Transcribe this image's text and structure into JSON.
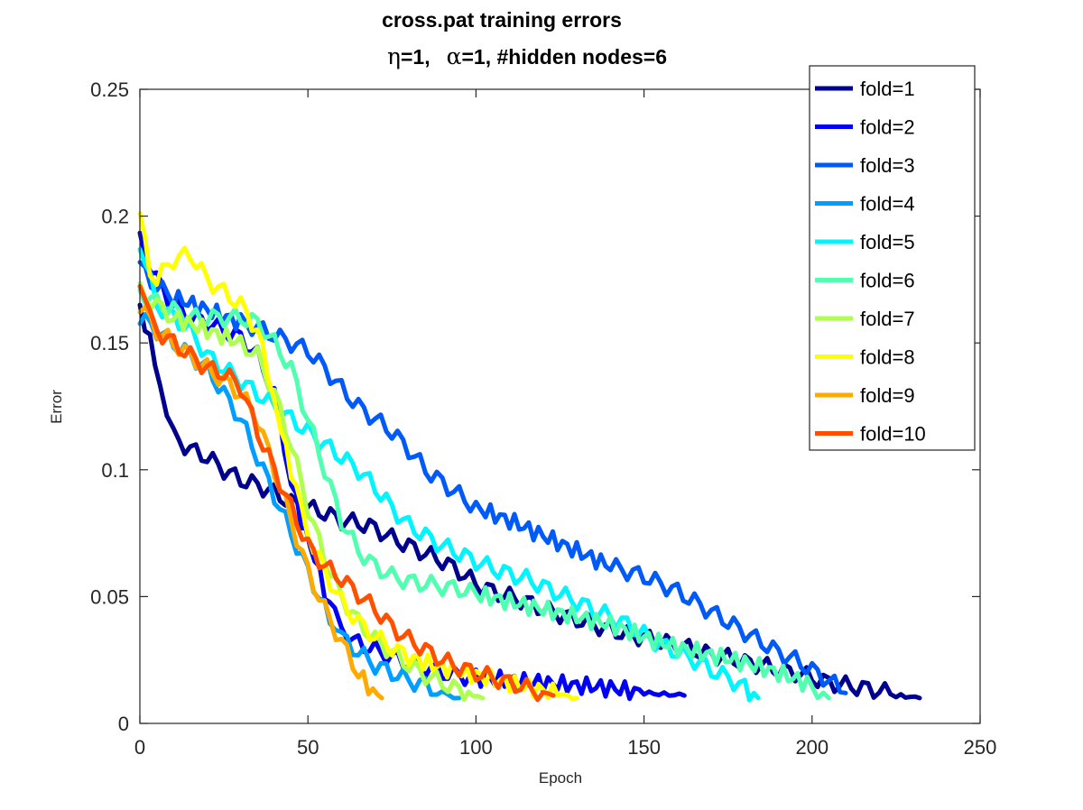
{
  "chart_data": {
    "type": "line",
    "title": "cross.pat training errors",
    "subtitle": {
      "eta_symbol": "η",
      "eta_text": "=1,",
      "alpha_symbol": "α",
      "alpha_text": "=1, #hidden nodes=6"
    },
    "xlabel": "Epoch",
    "ylabel": "Error",
    "xlim": [
      0,
      250
    ],
    "ylim": [
      0,
      0.25
    ],
    "xticks": [
      0,
      50,
      100,
      150,
      200,
      250
    ],
    "xtick_labels": [
      "0",
      "50",
      "100",
      "150",
      "200",
      "250"
    ],
    "yticks": [
      0,
      0.05,
      0.1,
      0.15,
      0.2,
      0.25
    ],
    "ytick_labels": [
      "0",
      "0.05",
      "0.1",
      "0.15",
      "0.2",
      "0.25"
    ],
    "grid": false,
    "legend_position": "top-right",
    "series": [
      {
        "name": "fold=1",
        "color": "#00008f",
        "points": [
          [
            0,
            0.165
          ],
          [
            3,
            0.15
          ],
          [
            6,
            0.135
          ],
          [
            8,
            0.12
          ],
          [
            10,
            0.113
          ],
          [
            15,
            0.108
          ],
          [
            20,
            0.105
          ],
          [
            25,
            0.1
          ],
          [
            30,
            0.096
          ],
          [
            35,
            0.094
          ],
          [
            40,
            0.091
          ],
          [
            45,
            0.087
          ],
          [
            50,
            0.085
          ],
          [
            55,
            0.083
          ],
          [
            60,
            0.08
          ],
          [
            65,
            0.079
          ],
          [
            70,
            0.077
          ],
          [
            75,
            0.073
          ],
          [
            80,
            0.07
          ],
          [
            85,
            0.067
          ],
          [
            90,
            0.064
          ],
          [
            95,
            0.06
          ],
          [
            100,
            0.055
          ],
          [
            105,
            0.052
          ],
          [
            110,
            0.05
          ],
          [
            115,
            0.048
          ],
          [
            120,
            0.045
          ],
          [
            125,
            0.043
          ],
          [
            130,
            0.041
          ],
          [
            135,
            0.039
          ],
          [
            140,
            0.037
          ],
          [
            145,
            0.035
          ],
          [
            150,
            0.034
          ],
          [
            155,
            0.032
          ],
          [
            160,
            0.031
          ],
          [
            165,
            0.029
          ],
          [
            170,
            0.027
          ],
          [
            175,
            0.026
          ],
          [
            180,
            0.024
          ],
          [
            185,
            0.023
          ],
          [
            190,
            0.021
          ],
          [
            195,
            0.02
          ],
          [
            200,
            0.018
          ],
          [
            205,
            0.016
          ],
          [
            210,
            0.015
          ],
          [
            215,
            0.014
          ],
          [
            220,
            0.013
          ],
          [
            225,
            0.011
          ],
          [
            232,
            0.01
          ]
        ]
      },
      {
        "name": "fold=2",
        "color": "#0000f5",
        "points": [
          [
            0,
            0.19
          ],
          [
            5,
            0.175
          ],
          [
            10,
            0.165
          ],
          [
            15,
            0.16
          ],
          [
            20,
            0.158
          ],
          [
            25,
            0.155
          ],
          [
            30,
            0.152
          ],
          [
            35,
            0.145
          ],
          [
            40,
            0.13
          ],
          [
            43,
            0.11
          ],
          [
            45,
            0.095
          ],
          [
            48,
            0.08
          ],
          [
            52,
            0.065
          ],
          [
            55,
            0.052
          ],
          [
            58,
            0.043
          ],
          [
            60,
            0.038
          ],
          [
            62,
            0.035
          ],
          [
            65,
            0.032
          ],
          [
            70,
            0.029
          ],
          [
            75,
            0.026
          ],
          [
            80,
            0.024
          ],
          [
            85,
            0.022
          ],
          [
            90,
            0.02
          ],
          [
            95,
            0.019
          ],
          [
            100,
            0.018
          ],
          [
            110,
            0.017
          ],
          [
            120,
            0.016
          ],
          [
            130,
            0.015
          ],
          [
            140,
            0.014
          ],
          [
            150,
            0.012
          ],
          [
            162,
            0.011
          ]
        ]
      },
      {
        "name": "fold=3",
        "color": "#005af8",
        "points": [
          [
            0,
            0.18
          ],
          [
            5,
            0.172
          ],
          [
            10,
            0.168
          ],
          [
            20,
            0.163
          ],
          [
            30,
            0.158
          ],
          [
            35,
            0.156
          ],
          [
            40,
            0.153
          ],
          [
            45,
            0.15
          ],
          [
            50,
            0.147
          ],
          [
            55,
            0.14
          ],
          [
            60,
            0.132
          ],
          [
            65,
            0.125
          ],
          [
            70,
            0.12
          ],
          [
            75,
            0.115
          ],
          [
            80,
            0.108
          ],
          [
            85,
            0.1
          ],
          [
            90,
            0.095
          ],
          [
            95,
            0.09
          ],
          [
            100,
            0.085
          ],
          [
            110,
            0.08
          ],
          [
            120,
            0.074
          ],
          [
            130,
            0.068
          ],
          [
            140,
            0.062
          ],
          [
            145,
            0.06
          ],
          [
            150,
            0.058
          ],
          [
            155,
            0.055
          ],
          [
            160,
            0.052
          ],
          [
            165,
            0.048
          ],
          [
            170,
            0.044
          ],
          [
            175,
            0.04
          ],
          [
            180,
            0.036
          ],
          [
            185,
            0.032
          ],
          [
            190,
            0.028
          ],
          [
            195,
            0.025
          ],
          [
            200,
            0.021
          ],
          [
            205,
            0.017
          ],
          [
            210,
            0.012
          ]
        ]
      },
      {
        "name": "fold=4",
        "color": "#009fff",
        "points": [
          [
            0,
            0.16
          ],
          [
            5,
            0.155
          ],
          [
            10,
            0.15
          ],
          [
            15,
            0.145
          ],
          [
            20,
            0.14
          ],
          [
            25,
            0.13
          ],
          [
            30,
            0.12
          ],
          [
            35,
            0.105
          ],
          [
            40,
            0.09
          ],
          [
            45,
            0.075
          ],
          [
            50,
            0.06
          ],
          [
            55,
            0.045
          ],
          [
            58,
            0.038
          ],
          [
            60,
            0.034
          ],
          [
            65,
            0.028
          ],
          [
            70,
            0.023
          ],
          [
            75,
            0.02
          ],
          [
            80,
            0.017
          ],
          [
            85,
            0.015
          ],
          [
            90,
            0.012
          ],
          [
            95,
            0.01
          ]
        ]
      },
      {
        "name": "fold=5",
        "color": "#00f5ff",
        "points": [
          [
            0,
            0.19
          ],
          [
            5,
            0.165
          ],
          [
            10,
            0.16
          ],
          [
            15,
            0.155
          ],
          [
            20,
            0.145
          ],
          [
            25,
            0.14
          ],
          [
            30,
            0.135
          ],
          [
            35,
            0.13
          ],
          [
            40,
            0.125
          ],
          [
            45,
            0.12
          ],
          [
            50,
            0.115
          ],
          [
            55,
            0.11
          ],
          [
            60,
            0.105
          ],
          [
            65,
            0.1
          ],
          [
            70,
            0.093
          ],
          [
            75,
            0.085
          ],
          [
            80,
            0.078
          ],
          [
            85,
            0.074
          ],
          [
            90,
            0.07
          ],
          [
            95,
            0.067
          ],
          [
            100,
            0.064
          ],
          [
            105,
            0.061
          ],
          [
            110,
            0.059
          ],
          [
            115,
            0.057
          ],
          [
            120,
            0.054
          ],
          [
            125,
            0.051
          ],
          [
            130,
            0.048
          ],
          [
            135,
            0.045
          ],
          [
            140,
            0.042
          ],
          [
            145,
            0.039
          ],
          [
            150,
            0.035
          ],
          [
            155,
            0.031
          ],
          [
            160,
            0.028
          ],
          [
            165,
            0.025
          ],
          [
            170,
            0.021
          ],
          [
            175,
            0.018
          ],
          [
            180,
            0.014
          ],
          [
            184,
            0.01
          ]
        ]
      },
      {
        "name": "fold=6",
        "color": "#50ffaf",
        "points": [
          [
            0,
            0.17
          ],
          [
            5,
            0.166
          ],
          [
            10,
            0.163
          ],
          [
            15,
            0.16
          ],
          [
            20,
            0.16
          ],
          [
            25,
            0.16
          ],
          [
            30,
            0.16
          ],
          [
            35,
            0.158
          ],
          [
            40,
            0.15
          ],
          [
            45,
            0.14
          ],
          [
            50,
            0.12
          ],
          [
            55,
            0.1
          ],
          [
            60,
            0.08
          ],
          [
            65,
            0.068
          ],
          [
            70,
            0.062
          ],
          [
            75,
            0.058
          ],
          [
            80,
            0.056
          ],
          [
            85,
            0.055
          ],
          [
            90,
            0.054
          ],
          [
            95,
            0.053
          ],
          [
            100,
            0.051
          ],
          [
            110,
            0.048
          ],
          [
            120,
            0.045
          ],
          [
            130,
            0.042
          ],
          [
            140,
            0.039
          ],
          [
            150,
            0.034
          ],
          [
            160,
            0.03
          ],
          [
            170,
            0.027
          ],
          [
            180,
            0.024
          ],
          [
            190,
            0.02
          ],
          [
            200,
            0.015
          ],
          [
            205,
            0.01
          ]
        ]
      },
      {
        "name": "fold=7",
        "color": "#afff50",
        "points": [
          [
            0,
            0.17
          ],
          [
            5,
            0.165
          ],
          [
            10,
            0.16
          ],
          [
            20,
            0.155
          ],
          [
            30,
            0.15
          ],
          [
            35,
            0.145
          ],
          [
            40,
            0.13
          ],
          [
            45,
            0.11
          ],
          [
            50,
            0.085
          ],
          [
            55,
            0.065
          ],
          [
            60,
            0.05
          ],
          [
            65,
            0.04
          ],
          [
            70,
            0.033
          ],
          [
            75,
            0.028
          ],
          [
            80,
            0.023
          ],
          [
            85,
            0.019
          ],
          [
            90,
            0.016
          ],
          [
            95,
            0.013
          ],
          [
            102,
            0.01
          ]
        ]
      },
      {
        "name": "fold=8",
        "color": "#ffff00",
        "points": [
          [
            0,
            0.2
          ],
          [
            3,
            0.18
          ],
          [
            5,
            0.175
          ],
          [
            10,
            0.183
          ],
          [
            15,
            0.185
          ],
          [
            20,
            0.175
          ],
          [
            25,
            0.17
          ],
          [
            30,
            0.165
          ],
          [
            35,
            0.155
          ],
          [
            38,
            0.14
          ],
          [
            40,
            0.13
          ],
          [
            42,
            0.115
          ],
          [
            45,
            0.1
          ],
          [
            48,
            0.085
          ],
          [
            50,
            0.075
          ],
          [
            55,
            0.06
          ],
          [
            60,
            0.048
          ],
          [
            65,
            0.04
          ],
          [
            70,
            0.034
          ],
          [
            75,
            0.03
          ],
          [
            80,
            0.026
          ],
          [
            90,
            0.022
          ],
          [
            100,
            0.019
          ],
          [
            110,
            0.016
          ],
          [
            120,
            0.013
          ],
          [
            130,
            0.01
          ]
        ]
      },
      {
        "name": "fold=9",
        "color": "#ffaa00",
        "points": [
          [
            0,
            0.165
          ],
          [
            5,
            0.155
          ],
          [
            10,
            0.15
          ],
          [
            15,
            0.145
          ],
          [
            20,
            0.14
          ],
          [
            25,
            0.135
          ],
          [
            30,
            0.13
          ],
          [
            35,
            0.12
          ],
          [
            40,
            0.1
          ],
          [
            45,
            0.08
          ],
          [
            50,
            0.06
          ],
          [
            55,
            0.045
          ],
          [
            60,
            0.032
          ],
          [
            65,
            0.02
          ],
          [
            68,
            0.014
          ],
          [
            72,
            0.01
          ]
        ]
      },
      {
        "name": "fold=10",
        "color": "#ff5000",
        "points": [
          [
            0,
            0.175
          ],
          [
            3,
            0.16
          ],
          [
            5,
            0.155
          ],
          [
            10,
            0.15
          ],
          [
            15,
            0.145
          ],
          [
            20,
            0.14
          ],
          [
            25,
            0.138
          ],
          [
            30,
            0.133
          ],
          [
            35,
            0.115
          ],
          [
            40,
            0.1
          ],
          [
            45,
            0.085
          ],
          [
            50,
            0.07
          ],
          [
            55,
            0.062
          ],
          [
            60,
            0.057
          ],
          [
            65,
            0.051
          ],
          [
            70,
            0.045
          ],
          [
            75,
            0.038
          ],
          [
            80,
            0.033
          ],
          [
            85,
            0.029
          ],
          [
            90,
            0.025
          ],
          [
            95,
            0.022
          ],
          [
            100,
            0.02
          ],
          [
            105,
            0.018
          ],
          [
            110,
            0.016
          ],
          [
            115,
            0.014
          ],
          [
            120,
            0.012
          ],
          [
            123,
            0.011
          ]
        ]
      }
    ]
  }
}
